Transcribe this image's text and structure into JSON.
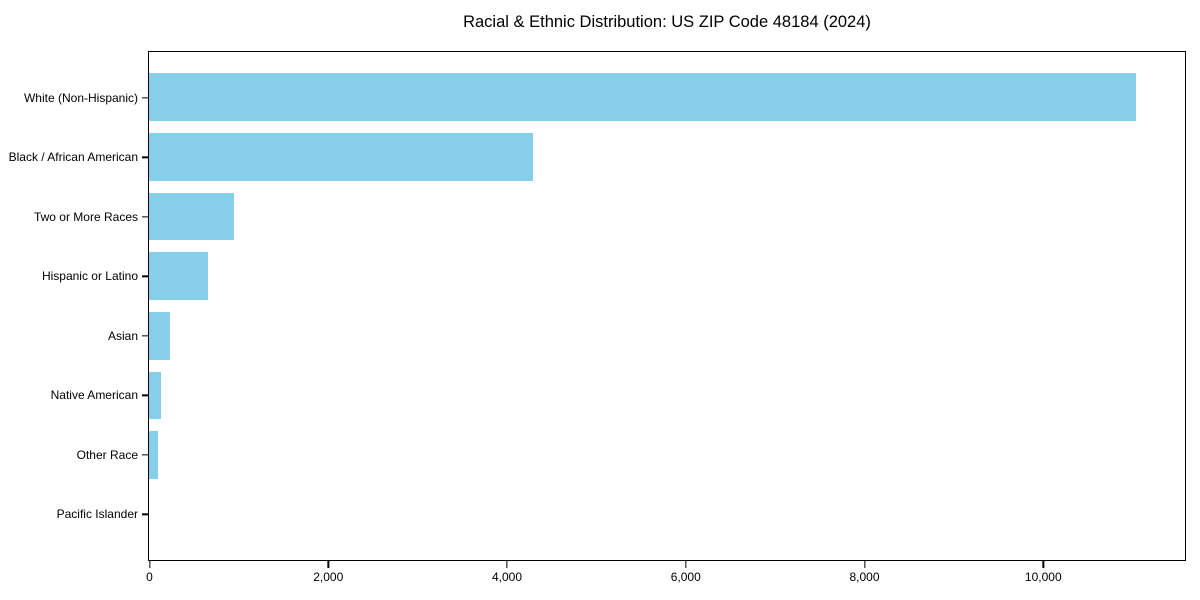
{
  "figure": {
    "background": "#ffffff",
    "text_color": "#000000"
  },
  "chart_data": {
    "type": "bar",
    "orientation": "horizontal",
    "title": "Racial & Ethnic Distribution: US ZIP Code 48184 (2024)",
    "xlabel": "",
    "ylabel": "",
    "categories": [
      "White (Non-Hispanic)",
      "Black / African American",
      "Two or More Races",
      "Hispanic or Latino",
      "Asian",
      "Native American",
      "Other Race",
      "Pacific Islander"
    ],
    "values": [
      11030,
      4290,
      950,
      660,
      230,
      130,
      100,
      0
    ],
    "xlim": [
      0,
      11580
    ],
    "xticks": {
      "values": [
        0,
        2000,
        4000,
        6000,
        8000,
        10000
      ],
      "labels": [
        "0",
        "2,000",
        "4,000",
        "6,000",
        "8,000",
        "10,000"
      ]
    },
    "bar_color": "#87CEEB",
    "bar_height_fraction": 0.8,
    "grid": false,
    "legend_position": "none"
  }
}
